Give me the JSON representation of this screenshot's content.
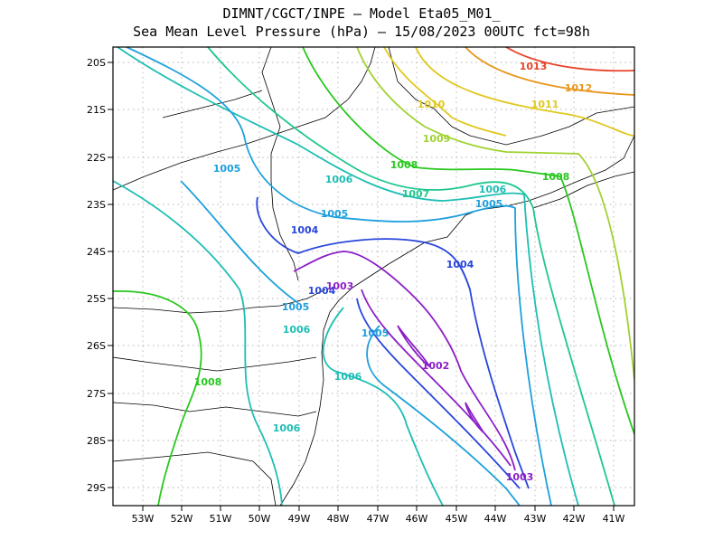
{
  "header": {
    "line1": "DIMNT/CGCT/INPE –  Model Eta05_M01_",
    "line2": "Sea Mean Level Pressure (hPa) – 15/08/2023 00UTC fct=98h"
  },
  "axes": {
    "lat_labels": [
      "20S",
      "21S",
      "22S",
      "23S",
      "24S",
      "25S",
      "26S",
      "27S",
      "28S",
      "29S"
    ],
    "lon_labels": [
      "53W",
      "52W",
      "51W",
      "50W",
      "49W",
      "48W",
      "47W",
      "46W",
      "45W",
      "44W",
      "43W",
      "42W",
      "41W"
    ]
  },
  "contour_labels": [
    {
      "text": "1013",
      "color": "#e8442a"
    },
    {
      "text": "1012",
      "color": "#e8961e"
    },
    {
      "text": "1011",
      "color": "#e0c81e"
    },
    {
      "text": "1010",
      "color": "#e0c81e"
    },
    {
      "text": "1009",
      "color": "#a0d232"
    },
    {
      "text": "1008",
      "color": "#28c81e"
    },
    {
      "text": "1008",
      "color": "#28c81e"
    },
    {
      "text": "1008",
      "color": "#28c81e"
    },
    {
      "text": "1007",
      "color": "#1ec88c"
    },
    {
      "text": "1006",
      "color": "#1ebeb4"
    },
    {
      "text": "1006",
      "color": "#1ebeb4"
    },
    {
      "text": "1006",
      "color": "#1ebeb4"
    },
    {
      "text": "1006",
      "color": "#1ebeb4"
    },
    {
      "text": "1006",
      "color": "#1ebeb4"
    },
    {
      "text": "1005",
      "color": "#1ea0dc"
    },
    {
      "text": "1005",
      "color": "#1ea0dc"
    },
    {
      "text": "1005",
      "color": "#1ea0dc"
    },
    {
      "text": "1005",
      "color": "#1ea0dc"
    },
    {
      "text": "1005",
      "color": "#1ea0dc"
    },
    {
      "text": "1004",
      "color": "#2846dc"
    },
    {
      "text": "1004",
      "color": "#2846dc"
    },
    {
      "text": "1004",
      "color": "#2846dc"
    },
    {
      "text": "1003",
      "color": "#8c1ec8"
    },
    {
      "text": "1003",
      "color": "#8c1ec8"
    },
    {
      "text": "1002",
      "color": "#8c1ec8"
    }
  ]
}
